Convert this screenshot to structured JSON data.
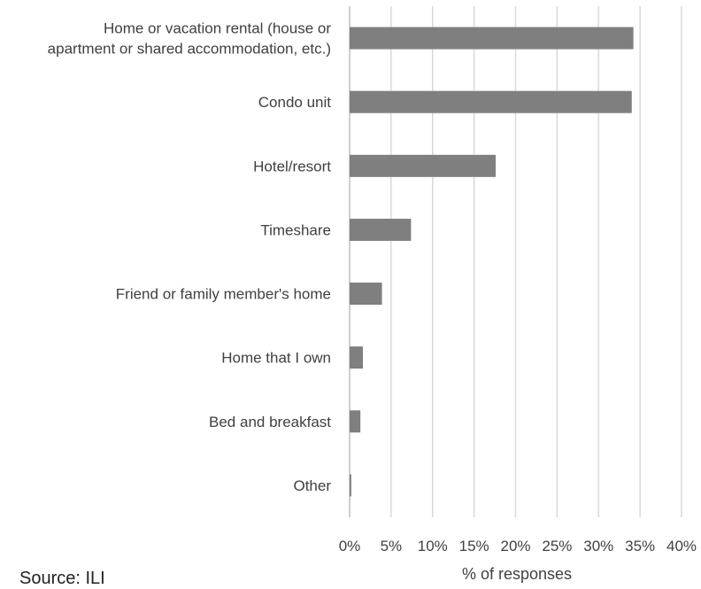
{
  "chart_data": {
    "type": "bar",
    "orientation": "horizontal",
    "categories": [
      [
        "Home or vacation rental (house or",
        "apartment or shared accommodation, etc.)"
      ],
      [
        "Condo unit"
      ],
      [
        "Hotel/resort"
      ],
      [
        "Timeshare"
      ],
      [
        "Friend or family member's home"
      ],
      [
        "Home that I own"
      ],
      [
        "Bed and breakfast"
      ],
      [
        "Other"
      ]
    ],
    "values": [
      34.2,
      34.0,
      17.6,
      7.4,
      3.9,
      1.6,
      1.3,
      0.2
    ],
    "xlabel": "% of responses",
    "ylabel": "",
    "xlim": [
      0,
      40
    ],
    "xticks": [
      "0%",
      "5%",
      "10%",
      "15%",
      "20%",
      "25%",
      "30%",
      "35%",
      "40%"
    ],
    "grid": true,
    "bar_color": "#7f7f7f",
    "grid_color": "#d9d9d9"
  },
  "source": "Source: ILI"
}
